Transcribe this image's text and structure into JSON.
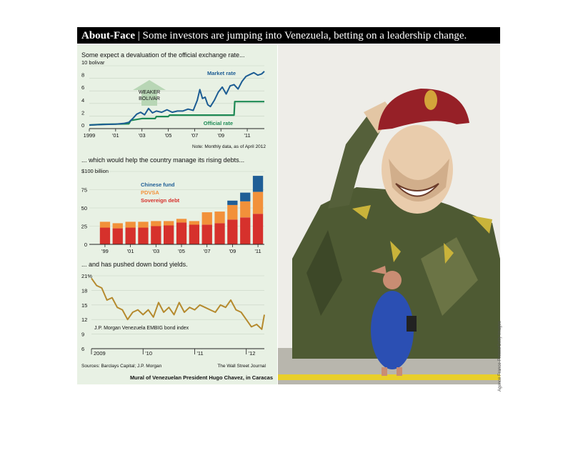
{
  "header": {
    "bold_title": "About-Face",
    "separator": " | ",
    "subtitle": "Some investors are jumping into Venezuela, betting on a leadership change."
  },
  "photo": {
    "caption": "Mural of Venezuelan President Hugo Chavez, in Caracas",
    "credit": "Agence France-Presse/Getty Images"
  },
  "footer": {
    "sources": "Sources: Barclays Capital; J.P. Morgan",
    "publisher": "The Wall Street Journal"
  },
  "colors": {
    "market": "#1c5c93",
    "official": "#1e8a55",
    "chinese": "#1f5e96",
    "pdvsa": "#f2913a",
    "sovereign": "#d6312c",
    "bond": "#b58a2e",
    "panel": "#e8f1e4",
    "arrow": "#b8d6b5"
  },
  "chart_data": [
    {
      "type": "line",
      "title": "Some expect a devaluation of the official exchange rate...",
      "ylabel": "bolivar",
      "unit_label": "10 bolivar",
      "yticks": [
        "10 bolivar",
        "8",
        "6",
        "4",
        "2",
        "0"
      ],
      "ytick_values": [
        10,
        8,
        6,
        4,
        2,
        0
      ],
      "xticks": [
        "1999",
        "'01",
        "'03",
        "'05",
        "'07",
        "'09",
        "'11"
      ],
      "xtick_values": [
        1999,
        2001,
        2003,
        2005,
        2007,
        2009,
        2011
      ],
      "xlim": [
        1999,
        2012.3
      ],
      "ylim": [
        0,
        10
      ],
      "note": "Note: Monthly data, as of April 2012",
      "annotation": "WEAKER BOLIVAR",
      "series": [
        {
          "name": "Market rate",
          "x": [
            1999.0,
            2000.0,
            2001.0,
            2001.6,
            2002.0,
            2002.3,
            2002.6,
            2002.9,
            2003.2,
            2003.5,
            2003.8,
            2004.1,
            2004.5,
            2004.9,
            2005.3,
            2005.7,
            2006.1,
            2006.5,
            2006.9,
            2007.2,
            2007.4,
            2007.6,
            2007.8,
            2008.0,
            2008.2,
            2008.5,
            2008.8,
            2009.1,
            2009.4,
            2009.7,
            2010.0,
            2010.3,
            2010.6,
            2010.9,
            2011.2,
            2011.5,
            2011.8,
            2012.1,
            2012.3
          ],
          "y": [
            0.57,
            0.65,
            0.72,
            0.82,
            1.0,
            1.6,
            2.3,
            2.6,
            2.2,
            3.2,
            2.5,
            2.8,
            2.6,
            3.0,
            2.6,
            2.8,
            2.8,
            3.1,
            2.9,
            4.5,
            6.2,
            4.8,
            5.0,
            3.8,
            3.5,
            4.5,
            5.8,
            6.6,
            5.5,
            6.8,
            7.0,
            6.3,
            7.5,
            8.3,
            8.6,
            8.9,
            8.5,
            8.7,
            9.1
          ]
        },
        {
          "name": "Official rate",
          "x": [
            1999.0,
            2000.0,
            2001.0,
            2002.0,
            2002.15,
            2003.0,
            2003.1,
            2004.0,
            2004.1,
            2005.0,
            2005.1,
            2010.0,
            2010.05,
            2012.3
          ],
          "y": [
            0.57,
            0.68,
            0.72,
            0.76,
            1.3,
            1.6,
            1.6,
            1.6,
            1.92,
            1.92,
            2.15,
            2.15,
            4.3,
            4.3
          ]
        }
      ]
    },
    {
      "type": "bar",
      "title": "... which would help the country manage its rising debts...",
      "unit_label": "$100 billion",
      "yticks": [
        "$100 billion",
        "75",
        "50",
        "25",
        "0"
      ],
      "ytick_values": [
        100,
        75,
        50,
        25,
        0
      ],
      "ylim": [
        0,
        100
      ],
      "categories": [
        "1999",
        "2000",
        "2001",
        "2002",
        "2003",
        "2004",
        "2005",
        "2006",
        "2007",
        "2008",
        "2009",
        "2010",
        "2011"
      ],
      "xticks": [
        "'99",
        "'01",
        "'03",
        "'05",
        "'07",
        "'09",
        "'11"
      ],
      "series": [
        {
          "name": "Sovereign debt",
          "values": [
            23,
            22,
            23,
            23,
            25,
            26,
            30,
            27,
            27,
            29,
            34,
            37,
            42
          ]
        },
        {
          "name": "PDVSA",
          "values": [
            8,
            7,
            8,
            8,
            7,
            6,
            5,
            5,
            17,
            16,
            20,
            22,
            30
          ]
        },
        {
          "name": "Chinese fund",
          "values": [
            0,
            0,
            0,
            0,
            0,
            0,
            0,
            0,
            0,
            0,
            6,
            12,
            22
          ]
        }
      ]
    },
    {
      "type": "line",
      "title": "... and has pushed down bond yields.",
      "yticks": [
        "21%",
        "18",
        "15",
        "12",
        "9",
        "6"
      ],
      "ytick_values": [
        21,
        18,
        15,
        12,
        9,
        6
      ],
      "ylim": [
        6,
        21
      ],
      "xticks": [
        "2009",
        "'10",
        "'11",
        "'12"
      ],
      "xtick_values": [
        2009,
        2010,
        2011,
        2012
      ],
      "xlim": [
        2009,
        2012.35
      ],
      "series": [
        {
          "name": "J.P. Morgan Venezuela EMBIG bond index",
          "x": [
            2009.0,
            2009.1,
            2009.2,
            2009.3,
            2009.4,
            2009.5,
            2009.6,
            2009.7,
            2009.8,
            2009.9,
            2010.0,
            2010.1,
            2010.2,
            2010.3,
            2010.4,
            2010.5,
            2010.6,
            2010.7,
            2010.8,
            2010.9,
            2011.0,
            2011.1,
            2011.2,
            2011.3,
            2011.4,
            2011.5,
            2011.6,
            2011.7,
            2011.8,
            2011.9,
            2012.0,
            2012.1,
            2012.2,
            2012.3,
            2012.35
          ],
          "y": [
            20.5,
            19.0,
            18.5,
            16.0,
            16.5,
            14.5,
            14.0,
            12.0,
            13.5,
            14.0,
            13.0,
            14.0,
            12.5,
            15.5,
            13.5,
            14.5,
            13.0,
            15.5,
            13.5,
            14.5,
            14.0,
            15.0,
            14.5,
            14.0,
            13.5,
            15.0,
            14.5,
            16.0,
            14.0,
            13.5,
            12.0,
            10.5,
            11.0,
            10.0,
            13.0
          ]
        }
      ]
    }
  ]
}
